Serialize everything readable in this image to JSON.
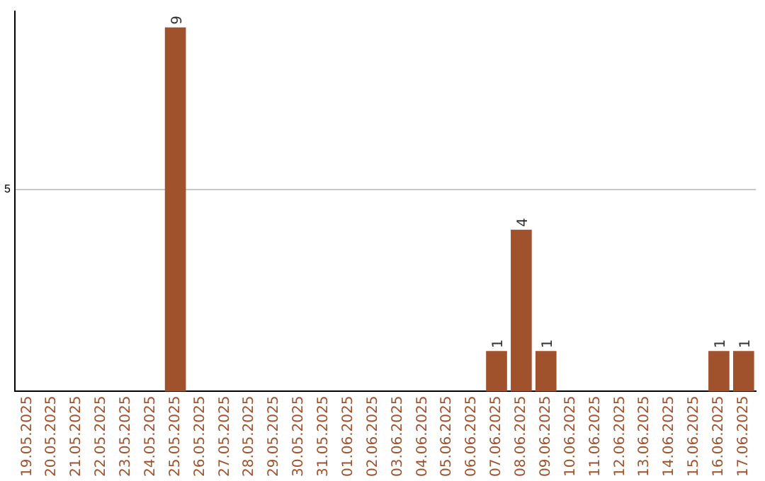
{
  "chart_data": {
    "type": "bar",
    "categories": [
      "19.05.2025",
      "20.05.2025",
      "21.05.2025",
      "22.05.2025",
      "23.05.2025",
      "24.05.2025",
      "25.05.2025",
      "26.05.2025",
      "27.05.2025",
      "28.05.2025",
      "29.05.2025",
      "30.05.2025",
      "31.05.2025",
      "01.06.2025",
      "02.06.2025",
      "03.06.2025",
      "04.06.2025",
      "05.06.2025",
      "06.06.2025",
      "07.06.2025",
      "08.06.2025",
      "09.06.2025",
      "10.06.2025",
      "11.06.2025",
      "12.06.2025",
      "13.06.2025",
      "14.06.2025",
      "15.06.2025",
      "16.06.2025",
      "17.06.2025"
    ],
    "values": [
      0,
      0,
      0,
      0,
      0,
      0,
      9,
      0,
      0,
      0,
      0,
      0,
      0,
      0,
      0,
      0,
      0,
      0,
      0,
      1,
      4,
      1,
      0,
      0,
      0,
      0,
      0,
      0,
      1,
      1
    ],
    "value_labels": [
      null,
      null,
      null,
      null,
      null,
      null,
      "9",
      null,
      null,
      null,
      null,
      null,
      null,
      null,
      null,
      null,
      null,
      null,
      null,
      "1",
      "4",
      "1",
      null,
      null,
      null,
      null,
      null,
      null,
      "1",
      "1"
    ],
    "color": "#a0522d",
    "ylim": [
      0,
      9.4
    ],
    "yticks": [
      5
    ],
    "grid": "y",
    "legend": false
  }
}
